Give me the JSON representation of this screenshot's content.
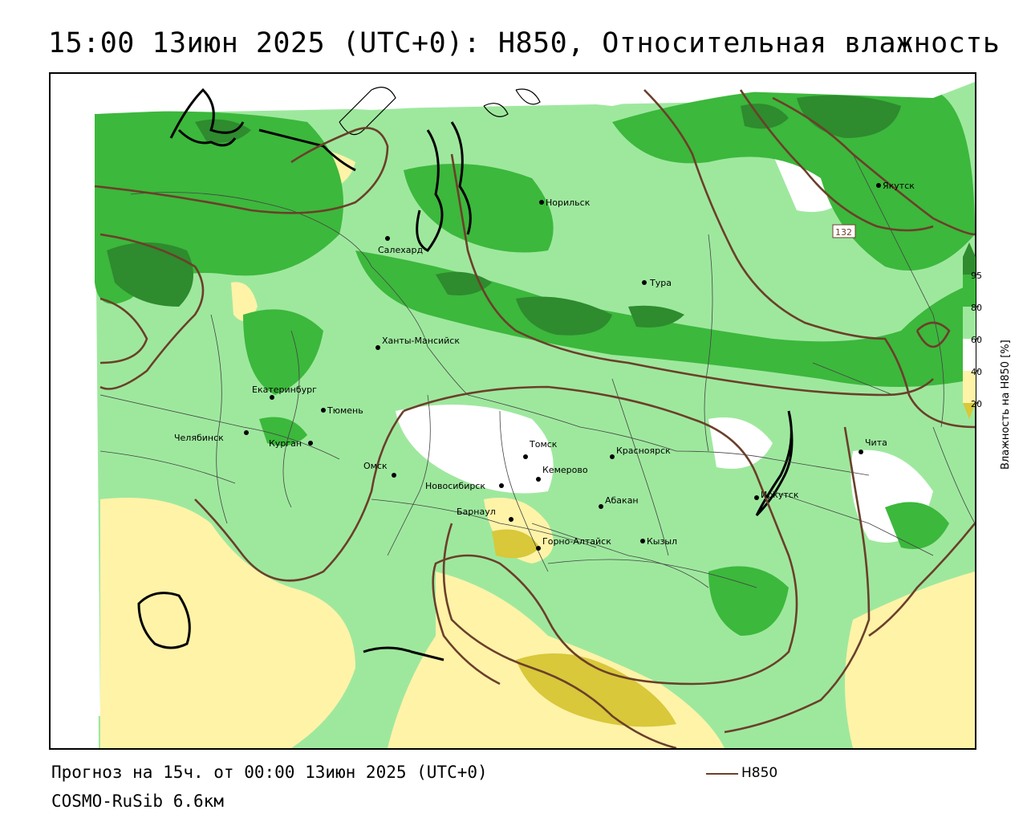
{
  "title": "15:00 13июн 2025 (UTC+0): H850, Относительная влажность",
  "footer": {
    "forecast": "Прогноз на 15ч. от 00:00 13июн 2025 (UTC+0)",
    "model": "COSMO-RuSib 6.6км"
  },
  "legend": {
    "line_label": "H850",
    "line_color": "#6b3f2a"
  },
  "colorbar": {
    "title": "Влажность на H850 [%]",
    "ticks": [
      "95",
      "80",
      "60",
      "40",
      "20"
    ],
    "colors": {
      "above95": "#2e8b2e",
      "c80_95": "#3cb83c",
      "c60_80": "#9ee89e",
      "c40_60": "#ffffff",
      "c20_40": "#fff3a8",
      "below20": "#d8c83a"
    }
  },
  "contour_label": "132",
  "cities": [
    {
      "name": "Норильск"
    },
    {
      "name": "Якутск"
    },
    {
      "name": "Салехард"
    },
    {
      "name": "Тура"
    },
    {
      "name": "Ханты-Мансийск"
    },
    {
      "name": "Екатеринбург"
    },
    {
      "name": "Тюмень"
    },
    {
      "name": "Челябинск"
    },
    {
      "name": "Курган"
    },
    {
      "name": "Омск"
    },
    {
      "name": "Томск"
    },
    {
      "name": "Красноярск"
    },
    {
      "name": "Новосибирск"
    },
    {
      "name": "Кемерово"
    },
    {
      "name": "Абакан"
    },
    {
      "name": "Барнаул"
    },
    {
      "name": "Иркутск"
    },
    {
      "name": "Чита"
    },
    {
      "name": "Горно-Алтайск"
    },
    {
      "name": "Кызыл"
    }
  ]
}
